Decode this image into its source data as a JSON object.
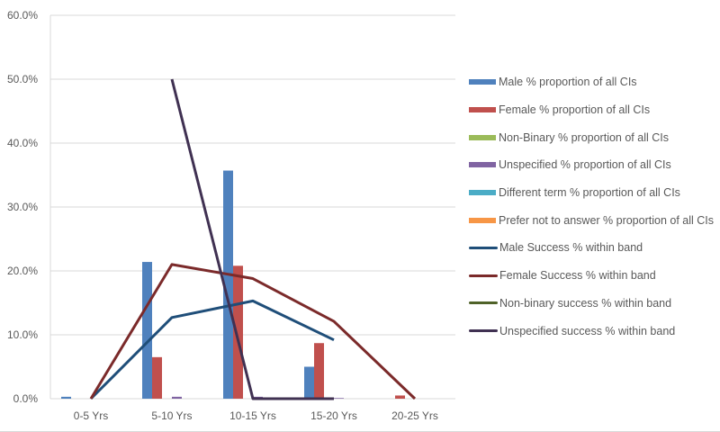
{
  "chart_data": {
    "type": "bar",
    "title": "",
    "xlabel": "",
    "ylabel": "",
    "ylim": [
      0,
      60
    ],
    "yticks": [
      "0.0%",
      "10.0%",
      "20.0%",
      "30.0%",
      "40.0%",
      "50.0%",
      "60.0%"
    ],
    "ytick_values": [
      0,
      10,
      20,
      30,
      40,
      50,
      60
    ],
    "grid": true,
    "legend_position": "right",
    "categories": [
      "0-5 Yrs",
      "5-10 Yrs",
      "10-15 Yrs",
      "15-20 Yrs",
      "20-25 Yrs"
    ],
    "bar_series": [
      {
        "name": "Male % proportion of all CIs",
        "color": "#4f81bd",
        "values": [
          0.3,
          21.4,
          35.7,
          5.0,
          0
        ]
      },
      {
        "name": "Female % proportion of all CIs",
        "color": "#c0504d",
        "values": [
          0,
          6.5,
          20.8,
          8.7,
          0.5
        ]
      },
      {
        "name": "Non-Binary % proportion of all CIs",
        "color": "#9bbb59",
        "values": [
          0,
          0,
          0,
          0,
          0
        ]
      },
      {
        "name": "Unspecified % proportion of all CIs",
        "color": "#8064a2",
        "values": [
          0,
          0.3,
          0.3,
          0.1,
          0
        ]
      },
      {
        "name": "Different term % proportion of all CIs",
        "color": "#4bacc6",
        "values": [
          0,
          0,
          0,
          0,
          0
        ]
      },
      {
        "name": "Prefer not to answer % proportion of all CIs",
        "color": "#f79646",
        "values": [
          0,
          0,
          0,
          0,
          0
        ]
      }
    ],
    "line_series": [
      {
        "name": "Male Success % within band",
        "color": "#1f4e79",
        "values": [
          0,
          12.7,
          15.3,
          9.2,
          null
        ]
      },
      {
        "name": "Female Success % within band",
        "color": "#7b2a2a",
        "values": [
          0,
          21.0,
          18.8,
          12.1,
          0
        ]
      },
      {
        "name": "Non-binary success % within band",
        "color": "#4f6228",
        "values": [
          null,
          null,
          0,
          0,
          null
        ]
      },
      {
        "name": "Unspecified success % within band",
        "color": "#403152",
        "values": [
          null,
          50,
          0,
          0,
          null
        ]
      }
    ]
  }
}
